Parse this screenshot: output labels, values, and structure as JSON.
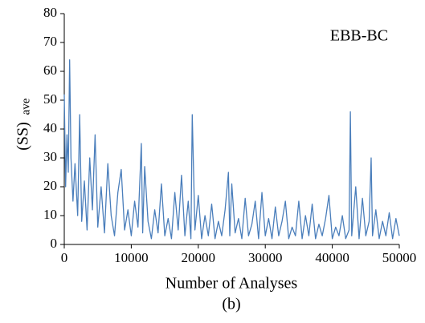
{
  "chart_data": {
    "type": "line",
    "annotation": "EBB-BC",
    "x_label": "Number of Analyses",
    "y_label": "(SS)",
    "y_label_sub": "ave",
    "caption": "(b)",
    "color": "#4a7ebb",
    "x": [
      0,
      200,
      400,
      600,
      800,
      1000,
      1300,
      1600,
      2000,
      2300,
      2600,
      3000,
      3400,
      3800,
      4200,
      4600,
      5000,
      5500,
      6000,
      6500,
      7000,
      7500,
      8000,
      8500,
      9000,
      9500,
      10000,
      10500,
      11000,
      11500,
      11700,
      12000,
      12500,
      13000,
      13500,
      14000,
      14500,
      15000,
      15500,
      16000,
      16500,
      17000,
      17500,
      18000,
      18500,
      18900,
      19100,
      19500,
      20000,
      20500,
      21000,
      21500,
      22000,
      22500,
      23000,
      23500,
      24000,
      24500,
      24700,
      25000,
      25500,
      26000,
      26500,
      27000,
      27500,
      28000,
      28500,
      29000,
      29500,
      30000,
      30500,
      31000,
      31500,
      32000,
      32500,
      33000,
      33500,
      34000,
      34500,
      35000,
      35500,
      36000,
      36500,
      37000,
      37500,
      38000,
      38500,
      39000,
      39500,
      40000,
      40500,
      41000,
      41500,
      42000,
      42500,
      42700,
      42900,
      43500,
      44000,
      44500,
      45000,
      45500,
      45800,
      46000,
      46500,
      47000,
      47500,
      48000,
      48500,
      49000,
      49500,
      50000
    ],
    "values": [
      52,
      20,
      38,
      25,
      64,
      30,
      15,
      28,
      10,
      45,
      8,
      22,
      5,
      30,
      12,
      38,
      6,
      20,
      4,
      28,
      10,
      3,
      18,
      26,
      5,
      12,
      3,
      15,
      6,
      35,
      4,
      27,
      8,
      2,
      12,
      4,
      21,
      3,
      9,
      2,
      18,
      5,
      24,
      3,
      15,
      2,
      45,
      5,
      17,
      2,
      10,
      3,
      14,
      2,
      8,
      3,
      12,
      25,
      3,
      21,
      4,
      9,
      2,
      16,
      3,
      7,
      15,
      2,
      18,
      3,
      9,
      2,
      13,
      3,
      8,
      15,
      2,
      6,
      3,
      15,
      2,
      10,
      3,
      14,
      2,
      7,
      3,
      9,
      17,
      2,
      6,
      3,
      10,
      2,
      5,
      46,
      3,
      20,
      2,
      16,
      3,
      8,
      30,
      3,
      12,
      2,
      8,
      3,
      11,
      2,
      9,
      3
    ],
    "xlim": [
      0,
      50000
    ],
    "ylim": [
      0,
      80
    ],
    "xticks": [
      0,
      10000,
      20000,
      30000,
      40000,
      50000
    ],
    "yticks": [
      0,
      10,
      20,
      30,
      40,
      50,
      60,
      70,
      80
    ]
  }
}
